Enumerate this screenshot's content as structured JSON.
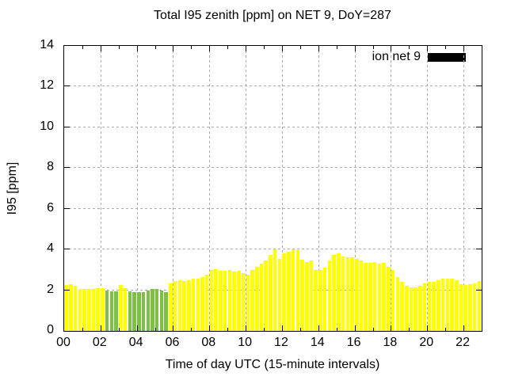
{
  "title": "Total I95 zenith [ppm] on NET 9, DoY=287",
  "axis": {
    "xlabel": "Time of day UTC (15-minute intervals)",
    "ylabel": "I95 [ppm]",
    "x_tick_positions": [
      0,
      2,
      4,
      6,
      8,
      10,
      12,
      14,
      16,
      18,
      20,
      22
    ],
    "x_tick_labels": [
      "00",
      "02",
      "04",
      "06",
      "08",
      "10",
      "12",
      "14",
      "16",
      "18",
      "20",
      "22"
    ],
    "x_minor_tick_hours": [
      1,
      3,
      5,
      7,
      9,
      11,
      13,
      15,
      17,
      19,
      21
    ],
    "y_tick_positions": [
      0,
      2,
      4,
      6,
      8,
      10,
      12,
      14
    ],
    "y_tick_labels": [
      "0",
      "2",
      "4",
      "6",
      "8",
      "10",
      "12",
      "14"
    ],
    "grid_vertical_hours": [
      2,
      4,
      6,
      8,
      10,
      12,
      14,
      16,
      18,
      20,
      22
    ],
    "grid_horizontal_values": [
      2,
      4,
      6,
      8,
      10,
      12
    ]
  },
  "legend": {
    "label": "ion net 9",
    "swatch_color": "#000000"
  },
  "colors": {
    "bar_default": "#FFFF00",
    "bar_alt": "#7CC142",
    "grid": "#AAAAAA",
    "axis": "#000000"
  },
  "chart_data": {
    "type": "bar",
    "title": "Total I95 zenith [ppm] on NET 9, DoY=287",
    "xlabel": "Time of day UTC (15-minute intervals)",
    "ylabel": "I95 [ppm]",
    "ylim": [
      0,
      14
    ],
    "xlim_hours": [
      0,
      23
    ],
    "interval_minutes": 15,
    "grid": true,
    "legend_position": "top-right",
    "legend_label": "ion net 9",
    "times": [
      "00:00",
      "00:15",
      "00:30",
      "00:45",
      "01:00",
      "01:15",
      "01:30",
      "01:45",
      "02:00",
      "02:15",
      "02:30",
      "02:45",
      "03:00",
      "03:15",
      "03:30",
      "03:45",
      "04:00",
      "04:15",
      "04:30",
      "04:45",
      "05:00",
      "05:15",
      "05:30",
      "05:45",
      "06:00",
      "06:15",
      "06:30",
      "06:45",
      "07:00",
      "07:15",
      "07:30",
      "07:45",
      "08:00",
      "08:15",
      "08:30",
      "08:45",
      "09:00",
      "09:15",
      "09:30",
      "09:45",
      "10:00",
      "10:15",
      "10:30",
      "10:45",
      "11:00",
      "11:15",
      "11:30",
      "11:45",
      "12:00",
      "12:15",
      "12:30",
      "12:45",
      "13:00",
      "13:15",
      "13:30",
      "13:45",
      "14:00",
      "14:15",
      "14:30",
      "14:45",
      "15:00",
      "15:15",
      "15:30",
      "15:45",
      "16:00",
      "16:15",
      "16:30",
      "16:45",
      "17:00",
      "17:15",
      "17:30",
      "17:45",
      "18:00",
      "18:15",
      "18:30",
      "18:45",
      "19:00",
      "19:15",
      "19:30",
      "19:45",
      "20:00",
      "20:15",
      "20:30",
      "20:45",
      "21:00",
      "21:15",
      "21:30",
      "21:45",
      "22:00",
      "22:15",
      "22:30",
      "22:45"
    ],
    "values": [
      2.25,
      2.3,
      2.2,
      2.05,
      2.05,
      2.05,
      2.05,
      2.1,
      2.1,
      2.0,
      1.95,
      1.95,
      2.25,
      2.1,
      1.95,
      1.9,
      1.9,
      1.9,
      2.0,
      2.05,
      2.05,
      2.0,
      1.9,
      2.35,
      2.45,
      2.5,
      2.45,
      2.5,
      2.55,
      2.55,
      2.65,
      2.75,
      3.0,
      3.05,
      2.95,
      2.95,
      3.0,
      2.9,
      2.95,
      2.85,
      2.75,
      3.0,
      3.15,
      3.3,
      3.45,
      3.75,
      4.0,
      3.55,
      3.8,
      3.9,
      4.0,
      3.95,
      3.5,
      3.4,
      3.45,
      3.0,
      3.0,
      3.1,
      3.45,
      3.75,
      3.8,
      3.65,
      3.6,
      3.6,
      3.55,
      3.45,
      3.35,
      3.35,
      3.4,
      3.3,
      3.35,
      3.15,
      3.0,
      2.65,
      2.4,
      2.2,
      2.15,
      2.15,
      2.2,
      2.35,
      2.4,
      2.4,
      2.5,
      2.55,
      2.55,
      2.55,
      2.5,
      2.3,
      2.25,
      2.3,
      2.35,
      2.45
    ],
    "green_indices": [
      9,
      10,
      11,
      14,
      15,
      16,
      17,
      18,
      19,
      20,
      21,
      22
    ],
    "bar_color_default": "#FFFF00",
    "bar_color_alt": "#7CC142"
  }
}
